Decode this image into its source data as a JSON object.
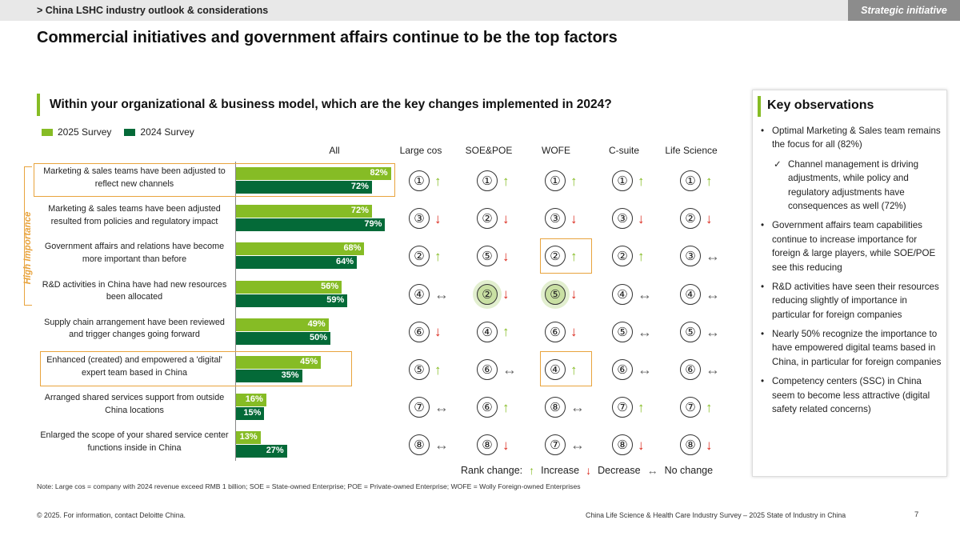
{
  "header": {
    "breadcrumb": "> China LSHC industry outlook & considerations",
    "tag": "Strategic initiative",
    "title": "Commercial initiatives and government affairs continue to be the top factors"
  },
  "question": "Within your organizational & business model, which are the key changes implemented in 2024?",
  "high_importance_label": "High Importance",
  "colors": {
    "survey_2025": "#86bc25",
    "survey_2024": "#046a38",
    "highlight": "#e8a33d",
    "increase": "#86bc25",
    "decrease": "#da291c"
  },
  "columns": [
    "All",
    "Large cos",
    "SOE&POE",
    "WOFE",
    "C-suite",
    "Life Science"
  ],
  "chart_data": {
    "type": "bar",
    "orientation": "horizontal",
    "title": "Within your organizational & business model, which are the key changes implemented in 2024?",
    "xlabel": "",
    "ylabel": "",
    "xlim": [
      0,
      100
    ],
    "categories": [
      "Marketing & sales teams have been adjusted to reflect new channels",
      "Marketing & sales teams have been adjusted resulted from policies and regulatory impact",
      "Government affairs and relations have become more important than before",
      "R&D activities in China have had new resources been allocated",
      "Supply chain arrangement have been reviewed and trigger changes going forward",
      "Enhanced (created) and empowered a 'digital' expert team based in China",
      "Arranged shared services support from outside China locations",
      "Enlarged the scope of your shared service center functions inside in China"
    ],
    "series": [
      {
        "name": "2025 Survey",
        "values": [
          82,
          72,
          68,
          56,
          49,
          45,
          16,
          13
        ]
      },
      {
        "name": "2024 Survey",
        "values": [
          72,
          79,
          64,
          59,
          50,
          35,
          15,
          27
        ]
      }
    ],
    "legend": [
      "2025 Survey",
      "2024 Survey"
    ]
  },
  "rows": [
    {
      "label": "Marketing & sales teams have been adjusted to reflect new channels",
      "ranks": [
        {
          "rank": "①",
          "change": "↑"
        },
        {
          "rank": "①",
          "change": "↑"
        },
        {
          "rank": "①",
          "change": "↑"
        },
        {
          "rank": "①",
          "change": "↑"
        },
        {
          "rank": "①",
          "change": "↑"
        }
      ]
    },
    {
      "label": "Marketing & sales teams have been adjusted resulted from policies and regulatory impact",
      "ranks": [
        {
          "rank": "③",
          "change": "↓"
        },
        {
          "rank": "②",
          "change": "↓"
        },
        {
          "rank": "③",
          "change": "↓"
        },
        {
          "rank": "③",
          "change": "↓"
        },
        {
          "rank": "②",
          "change": "↓"
        }
      ]
    },
    {
      "label": "Government affairs and relations have become more important than before",
      "ranks": [
        {
          "rank": "②",
          "change": "↑"
        },
        {
          "rank": "⑤",
          "change": "↓"
        },
        {
          "rank": "②",
          "change": "↑"
        },
        {
          "rank": "②",
          "change": "↑"
        },
        {
          "rank": "③",
          "change": "↔"
        }
      ]
    },
    {
      "label": "R&D activities in China have had new resources been allocated",
      "ranks": [
        {
          "rank": "④",
          "change": "↔"
        },
        {
          "rank": "②",
          "change": "↓"
        },
        {
          "rank": "⑤",
          "change": "↓"
        },
        {
          "rank": "④",
          "change": "↔"
        },
        {
          "rank": "④",
          "change": "↔"
        }
      ]
    },
    {
      "label": "Supply chain arrangement have been reviewed and trigger changes going forward",
      "ranks": [
        {
          "rank": "⑥",
          "change": "↓"
        },
        {
          "rank": "④",
          "change": "↑"
        },
        {
          "rank": "⑥",
          "change": "↓"
        },
        {
          "rank": "⑤",
          "change": "↔"
        },
        {
          "rank": "⑤",
          "change": "↔"
        }
      ]
    },
    {
      "label": "Enhanced (created) and empowered a 'digital' expert team based in China",
      "ranks": [
        {
          "rank": "⑤",
          "change": "↑"
        },
        {
          "rank": "⑥",
          "change": "↔"
        },
        {
          "rank": "④",
          "change": "↑"
        },
        {
          "rank": "⑥",
          "change": "↔"
        },
        {
          "rank": "⑥",
          "change": "↔"
        }
      ]
    },
    {
      "label": "Arranged shared services support from outside China locations",
      "ranks": [
        {
          "rank": "⑦",
          "change": "↔"
        },
        {
          "rank": "⑥",
          "change": "↑"
        },
        {
          "rank": "⑧",
          "change": "↔"
        },
        {
          "rank": "⑦",
          "change": "↑"
        },
        {
          "rank": "⑦",
          "change": "↑"
        }
      ]
    },
    {
      "label": "Enlarged the scope of your shared service center functions inside in China",
      "ranks": [
        {
          "rank": "⑧",
          "change": "↔"
        },
        {
          "rank": "⑧",
          "change": "↓"
        },
        {
          "rank": "⑦",
          "change": "↔"
        },
        {
          "rank": "⑧",
          "change": "↓"
        },
        {
          "rank": "⑧",
          "change": "↓"
        }
      ]
    }
  ],
  "rank_legend": {
    "title": "Rank change:",
    "increase": "Increase",
    "decrease": "Decrease",
    "no_change": "No change",
    "up_symbol": "↑",
    "down_symbol": "↓",
    "same_symbol": "↔"
  },
  "observations": {
    "title": "Key observations",
    "items": [
      "Optimal Marketing & Sales team remains the focus for all (82%)",
      "Channel management is driving adjustments, while policy and regulatory adjustments have consequences as well (72%)",
      "Government affairs team capabilities continue to increase importance for foreign & large players, while SOE/POE see this reducing",
      "R&D activities have seen their resources reducing slightly of importance in particular for foreign companies",
      "Nearly 50% recognize the importance to have empowered digital teams based in China, in particular for foreign companies",
      "Competency centers (SSC) in China seem to become less attractive (digital safety related concerns)"
    ]
  },
  "note": "Note: Large cos = company with 2024 revenue exceed RMB 1 billion; SOE = State-owned Enterprise; POE = Private-owned Enterprise; WOFE = Wolly Foreign-owned Enterprises",
  "footer": {
    "left": "© 2025. For information, contact Deloitte China.",
    "right": "China Life Science & Health Care Industry Survey – 2025 State of Industry in China",
    "page": "7"
  }
}
